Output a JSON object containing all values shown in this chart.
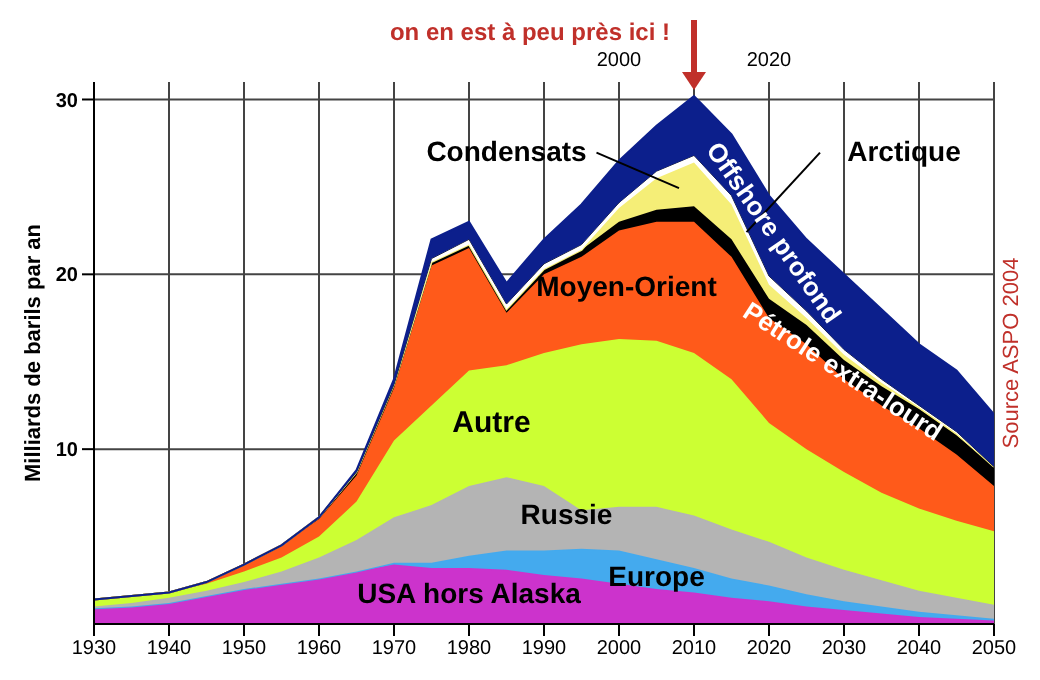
{
  "chart_data": {
    "type": "area",
    "stacked": true,
    "ylabel": "Milliards de barils par an",
    "x": [
      1930,
      1935,
      1940,
      1945,
      1950,
      1955,
      1960,
      1965,
      1970,
      1975,
      1980,
      1985,
      1990,
      1995,
      2000,
      2005,
      2010,
      2015,
      2020,
      2025,
      2030,
      2035,
      2040,
      2045,
      2050
    ],
    "series": [
      {
        "name": "USA hors Alaska",
        "color": "#cc33cc",
        "values": [
          0.9,
          1.0,
          1.2,
          1.6,
          2.0,
          2.3,
          2.6,
          3.0,
          3.4,
          3.2,
          3.2,
          3.1,
          2.8,
          2.6,
          2.3,
          2.0,
          1.8,
          1.5,
          1.3,
          1.0,
          0.8,
          0.6,
          0.4,
          0.3,
          0.2
        ]
      },
      {
        "name": "Europe",
        "color": "#44aaee",
        "values": [
          0,
          0,
          0,
          0,
          0,
          0,
          0,
          0,
          0.1,
          0.3,
          0.7,
          1.1,
          1.4,
          1.7,
          1.9,
          1.7,
          1.4,
          1.1,
          0.9,
          0.7,
          0.5,
          0.4,
          0.3,
          0.2,
          0.1
        ]
      },
      {
        "name": "Russie",
        "color": "#b4b4b4",
        "values": [
          0.1,
          0.2,
          0.3,
          0.3,
          0.4,
          0.7,
          1.2,
          1.8,
          2.6,
          3.3,
          4.0,
          4.2,
          3.7,
          2.2,
          2.5,
          3.0,
          3.0,
          2.8,
          2.5,
          2.1,
          1.8,
          1.5,
          1.2,
          1.0,
          0.8
        ]
      },
      {
        "name": "Autre",
        "color": "#ccff33",
        "values": [
          0.4,
          0.4,
          0.3,
          0.4,
          0.6,
          0.8,
          1.2,
          2.2,
          4.4,
          5.7,
          6.6,
          6.4,
          7.6,
          9.5,
          9.6,
          9.5,
          9.3,
          8.6,
          6.8,
          6.2,
          5.6,
          5.0,
          4.7,
          4.4,
          4.2
        ]
      },
      {
        "name": "Moyen-Orient",
        "color": "#ff5a1a",
        "values": [
          0,
          0,
          0,
          0.1,
          0.4,
          0.7,
          1.0,
          1.5,
          3.0,
          8.0,
          7.0,
          3.0,
          4.5,
          5.0,
          6.2,
          6.8,
          7.5,
          7.0,
          6.0,
          6.0,
          5.3,
          5.0,
          4.6,
          3.8,
          2.6
        ]
      },
      {
        "name": "Pétrole extra-lourd",
        "color": "#000000",
        "values": [
          0,
          0,
          0,
          0,
          0,
          0,
          0.1,
          0.2,
          0.2,
          0.2,
          0.2,
          0.2,
          0.3,
          0.4,
          0.5,
          0.7,
          0.9,
          1.0,
          1.1,
          1.1,
          1.1,
          1.1,
          1.1,
          1.1,
          1.1
        ]
      },
      {
        "name": "Condensats",
        "color": "#f5ee77",
        "values": [
          0,
          0,
          0,
          0,
          0,
          0,
          0,
          0,
          0,
          0,
          0,
          0,
          0,
          0,
          0.8,
          1.8,
          2.5,
          2.0,
          0.8,
          0.4,
          0.3,
          0.2,
          0.1,
          0.1,
          0
        ]
      },
      {
        "name": "Arctique",
        "color": "#ffffff",
        "values": [
          0,
          0,
          0,
          0,
          0,
          0,
          0,
          0,
          0,
          0.2,
          0.3,
          0.3,
          0.3,
          0.3,
          0.3,
          0.4,
          0.4,
          0.5,
          0.5,
          0.4,
          0.3,
          0.2,
          0.1,
          0.1,
          0
        ]
      },
      {
        "name": "Offshore profond",
        "color": "#0c1f8c",
        "values": [
          0,
          0,
          0,
          0,
          0,
          0,
          0,
          0.1,
          0.3,
          1.1,
          1.0,
          1.2,
          1.4,
          2.3,
          2.4,
          2.6,
          3.4,
          3.5,
          4.6,
          4.1,
          4.3,
          4.0,
          3.5,
          3.5,
          3.0
        ]
      }
    ],
    "xlim": [
      1930,
      2050
    ],
    "xticks": [
      1930,
      1940,
      1950,
      1960,
      1970,
      1980,
      1990,
      2000,
      2010,
      2020,
      2030,
      2040,
      2050
    ],
    "x2lim": [
      1930,
      2050
    ],
    "x2ticks": [
      2000,
      2020
    ],
    "ylim": [
      0,
      31
    ],
    "yticks": [
      10,
      20,
      30
    ],
    "grid": true,
    "annotations": [
      {
        "text": "on en est à peu près ici !",
        "x": 2010,
        "y": 30.2
      },
      "Source ASPO 2004"
    ]
  }
}
